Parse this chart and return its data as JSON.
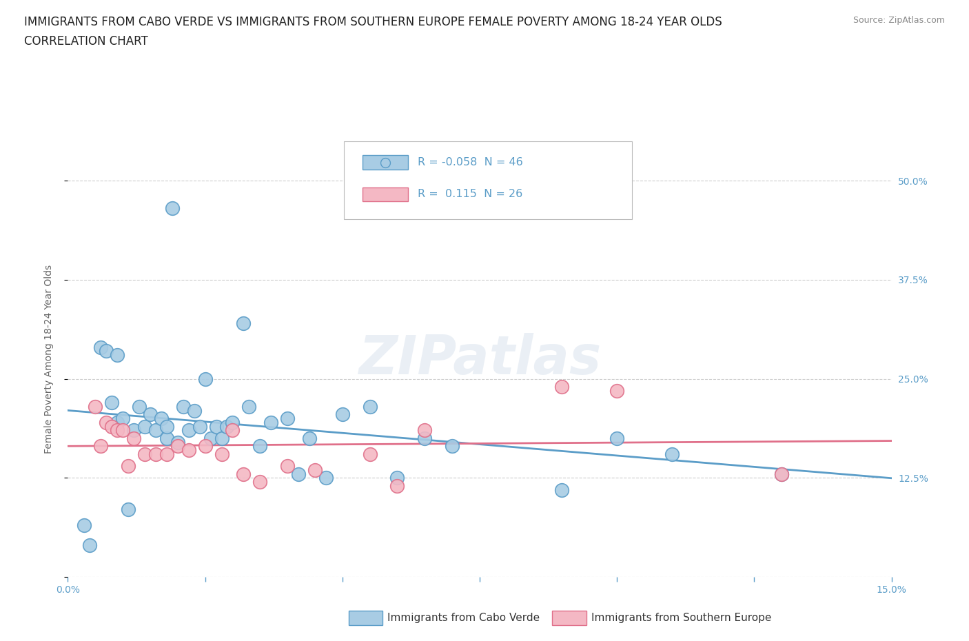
{
  "title_line1": "IMMIGRANTS FROM CABO VERDE VS IMMIGRANTS FROM SOUTHERN EUROPE FEMALE POVERTY AMONG 18-24 YEAR OLDS",
  "title_line2": "CORRELATION CHART",
  "source": "Source: ZipAtlas.com",
  "ylabel": "Female Poverty Among 18-24 Year Olds",
  "xlim": [
    0.0,
    0.15
  ],
  "ylim": [
    0.0,
    0.55
  ],
  "xticks": [
    0.0,
    0.025,
    0.05,
    0.075,
    0.1,
    0.125,
    0.15
  ],
  "xticklabels": [
    "0.0%",
    "",
    "",
    "",
    "",
    "",
    "15.0%"
  ],
  "yticks": [
    0.0,
    0.125,
    0.25,
    0.375,
    0.5
  ],
  "ytick_labels_right": [
    "",
    "12.5%",
    "25.0%",
    "37.5%",
    "50.0%"
  ],
  "legend_label1": "Immigrants from Cabo Verde",
  "legend_label2": "Immigrants from Southern Europe",
  "R1": -0.058,
  "N1": 46,
  "R2": 0.115,
  "N2": 26,
  "color1": "#a8cce4",
  "color2": "#f4b8c4",
  "edge_color1": "#5b9dc8",
  "edge_color2": "#e0708a",
  "line_color1": "#5b9dc8",
  "line_color2": "#e0708a",
  "background_color": "#ffffff",
  "watermark": "ZIPatlas",
  "blue_dots_x": [
    0.003,
    0.004,
    0.006,
    0.007,
    0.008,
    0.009,
    0.009,
    0.01,
    0.011,
    0.012,
    0.013,
    0.014,
    0.015,
    0.016,
    0.017,
    0.018,
    0.018,
    0.019,
    0.02,
    0.021,
    0.022,
    0.023,
    0.024,
    0.025,
    0.026,
    0.027,
    0.028,
    0.029,
    0.03,
    0.032,
    0.033,
    0.035,
    0.037,
    0.04,
    0.042,
    0.044,
    0.047,
    0.05,
    0.055,
    0.06,
    0.065,
    0.07,
    0.09,
    0.1,
    0.11,
    0.13
  ],
  "blue_dots_y": [
    0.065,
    0.04,
    0.29,
    0.285,
    0.22,
    0.28,
    0.195,
    0.2,
    0.085,
    0.185,
    0.215,
    0.19,
    0.205,
    0.185,
    0.2,
    0.175,
    0.19,
    0.465,
    0.17,
    0.215,
    0.185,
    0.21,
    0.19,
    0.25,
    0.175,
    0.19,
    0.175,
    0.19,
    0.195,
    0.32,
    0.215,
    0.165,
    0.195,
    0.2,
    0.13,
    0.175,
    0.125,
    0.205,
    0.215,
    0.125,
    0.175,
    0.165,
    0.11,
    0.175,
    0.155,
    0.13
  ],
  "pink_dots_x": [
    0.005,
    0.006,
    0.007,
    0.008,
    0.009,
    0.01,
    0.011,
    0.012,
    0.014,
    0.016,
    0.018,
    0.02,
    0.022,
    0.025,
    0.028,
    0.03,
    0.032,
    0.035,
    0.04,
    0.045,
    0.055,
    0.06,
    0.065,
    0.09,
    0.1,
    0.13
  ],
  "pink_dots_y": [
    0.215,
    0.165,
    0.195,
    0.19,
    0.185,
    0.185,
    0.14,
    0.175,
    0.155,
    0.155,
    0.155,
    0.165,
    0.16,
    0.165,
    0.155,
    0.185,
    0.13,
    0.12,
    0.14,
    0.135,
    0.155,
    0.115,
    0.185,
    0.24,
    0.235,
    0.13
  ],
  "grid_color": "#cccccc",
  "title_fontsize": 12,
  "axis_label_fontsize": 10,
  "tick_fontsize": 10,
  "legend_fontsize": 11,
  "source_fontsize": 9
}
